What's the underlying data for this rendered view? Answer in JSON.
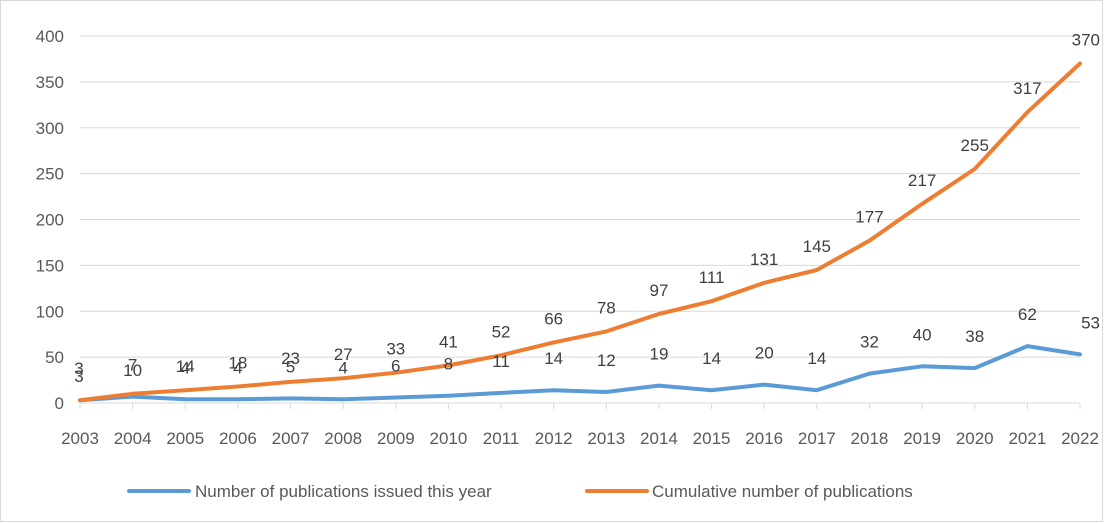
{
  "chart_data": {
    "type": "line",
    "title": "",
    "xlabel": "",
    "ylabel": "",
    "categories": [
      "2003",
      "2004",
      "2005",
      "2006",
      "2007",
      "2008",
      "2009",
      "2010",
      "2011",
      "2012",
      "2013",
      "2014",
      "2015",
      "2016",
      "2017",
      "2018",
      "2019",
      "2020",
      "2021",
      "2022"
    ],
    "ylim": [
      0,
      400
    ],
    "yticks": [
      0,
      50,
      100,
      150,
      200,
      250,
      300,
      350,
      400
    ],
    "grid": true,
    "legend_position": "bottom",
    "series": [
      {
        "name": "Number of publications issued this year",
        "color": "#5b9bd5",
        "values": [
          3,
          7,
          4,
          4,
          5,
          4,
          6,
          8,
          11,
          14,
          12,
          19,
          14,
          20,
          14,
          32,
          40,
          38,
          62,
          53
        ]
      },
      {
        "name": "Cumulative number of publications",
        "color": "#ed7d31",
        "values": [
          3,
          10,
          14,
          18,
          23,
          27,
          33,
          41,
          52,
          66,
          78,
          97,
          111,
          131,
          145,
          177,
          217,
          255,
          317,
          370
        ]
      }
    ]
  }
}
